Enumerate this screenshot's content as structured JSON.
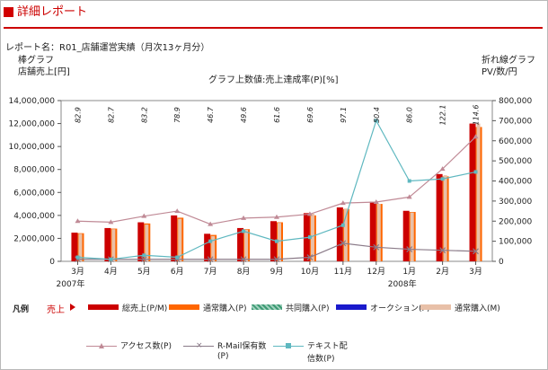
{
  "header": {
    "title": "詳細レポート"
  },
  "report": {
    "name_label": "レポート名：",
    "name_value": "R01_店舗運営実績（月次13ヶ月分）"
  },
  "axes": {
    "left_caption_1": "棒グラフ",
    "left_caption_2": "店舗売上[円]",
    "right_caption_1": "折れ線グラフ",
    "right_caption_2": "PV/数/円",
    "top_caption": "グラフ上数値:売上達成率(P)[%]"
  },
  "legend": {
    "section_label": "凡例",
    "sales_label": "売上",
    "bar_items": [
      {
        "label": "総売上(P/M)",
        "color": "#cc0000"
      },
      {
        "label": "通常購入(P)",
        "color": "#ff6600"
      },
      {
        "label": "共同購入(P)",
        "color": "#3d9a74"
      },
      {
        "label": "オークション(P)",
        "color": "#1a1acc"
      },
      {
        "label": "通常購入(M)",
        "color": "#e8c0a8"
      }
    ],
    "line_items": [
      {
        "label_1": "アクセス数(P)",
        "label_2": "",
        "color": "#c08a96",
        "marker": "triangle"
      },
      {
        "label_1": "R-Mail保有数",
        "label_2": "(P)",
        "color": "#8a7a88",
        "marker": "cross"
      },
      {
        "label_1": "テキスト配",
        "label_2": "信数(P)",
        "color": "#5fb8c0",
        "marker": "square"
      }
    ]
  },
  "chart_data": {
    "type": "bar",
    "categories": [
      "3月",
      "4月",
      "5月",
      "6月",
      "7月",
      "8月",
      "9月",
      "10月",
      "11月",
      "12月",
      "1月",
      "2月",
      "3月"
    ],
    "year_labels": [
      {
        "text": "2007年",
        "at_index": 0
      },
      {
        "text": "2008年",
        "at_index": 10
      }
    ],
    "achievement_rate_labels": [
      "82.9",
      "82.7",
      "83.2",
      "78.9",
      "46.7",
      "49.6",
      "61.6",
      "69.6",
      "97.1",
      "50.4",
      "86.0",
      "122.1",
      "114.6"
    ],
    "y_left": {
      "min": 0,
      "max": 14000000,
      "ticks": [
        "0",
        "2,000,000",
        "4,000,000",
        "6,000,000",
        "8,000,000",
        "10,000,000",
        "12,000,000",
        "14,000,000"
      ]
    },
    "y_right": {
      "min": 0,
      "max": 800000,
      "ticks": [
        "0",
        "100,000",
        "200,000",
        "300,000",
        "400,000",
        "500,000",
        "600,000",
        "700,000",
        "800,000"
      ]
    },
    "bar_series": [
      {
        "name": "総売上(P/M)",
        "color": "#cc0000",
        "values": [
          2500000,
          2900000,
          3400000,
          4000000,
          2400000,
          2900000,
          3500000,
          4200000,
          4700000,
          5200000,
          4400000,
          7600000,
          12000000
        ]
      },
      {
        "name": "通常購入(P)",
        "color": "#ff6600",
        "values": [
          2450000,
          2850000,
          3300000,
          3800000,
          2300000,
          2800000,
          3400000,
          4000000,
          4550000,
          5000000,
          4300000,
          7400000,
          11700000
        ]
      },
      {
        "name": "通常購入(M)",
        "color": "#e8c0a8",
        "values": [
          2400000,
          2800000,
          3200000,
          3700000,
          2200000,
          2750000,
          3350000,
          4150000,
          4600000,
          5000000,
          4250000,
          7500000,
          12000000
        ]
      }
    ],
    "line_series": [
      {
        "name": "アクセス数(P)",
        "color": "#c08a96",
        "values": [
          200000,
          195000,
          225000,
          250000,
          185000,
          215000,
          220000,
          235000,
          290000,
          295000,
          320000,
          460000,
          620000
        ]
      },
      {
        "name": "R-Mail保有数(P)",
        "color": "#8a7a88",
        "values": [
          10000,
          10000,
          10000,
          10000,
          10000,
          10000,
          10000,
          20000,
          90000,
          70000,
          60000,
          55000,
          50000
        ]
      },
      {
        "name": "テキスト配信数(P)",
        "color": "#5fb8c0",
        "values": [
          20000,
          10000,
          30000,
          20000,
          100000,
          150000,
          100000,
          120000,
          180000,
          700000,
          400000,
          410000,
          445000
        ]
      }
    ]
  }
}
